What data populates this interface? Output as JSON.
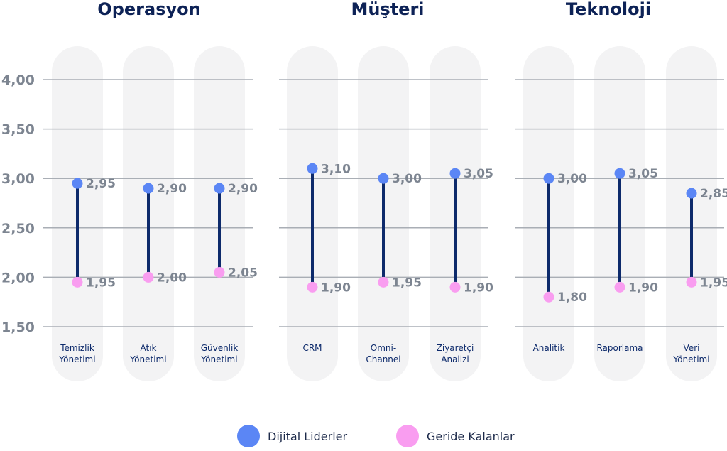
{
  "chart_data": {
    "type": "dumbbell",
    "ylim": [
      1.5,
      4.0
    ],
    "yticks": [
      "1,50",
      "2,00",
      "2,50",
      "3,00",
      "3,50",
      "4,00"
    ],
    "ytick_values": [
      1.5,
      2.0,
      2.5,
      3.0,
      3.5,
      4.0
    ],
    "grid": true,
    "legend_position": "bottom-center",
    "series": [
      {
        "name": "Dijital Liderler",
        "color": "#5b86f5"
      },
      {
        "name": "Geride Kalanlar",
        "color": "#f99df0"
      }
    ],
    "groups": [
      {
        "title": "Operasyon",
        "categories": [
          {
            "label": [
              "Temizlik",
              "Yönetimi"
            ],
            "leader": 2.95,
            "leader_label": "2,95",
            "lagger": 1.95,
            "lagger_label": "1,95"
          },
          {
            "label": [
              "Atık",
              "Yönetimi"
            ],
            "leader": 2.9,
            "leader_label": "2,90",
            "lagger": 2.0,
            "lagger_label": "2,00"
          },
          {
            "label": [
              "Güvenlik",
              "Yönetimi"
            ],
            "leader": 2.9,
            "leader_label": "2,90",
            "lagger": 2.05,
            "lagger_label": "2,05"
          }
        ]
      },
      {
        "title": "Müşteri",
        "categories": [
          {
            "label": [
              "CRM"
            ],
            "leader": 3.1,
            "leader_label": "3,10",
            "lagger": 1.9,
            "lagger_label": "1,90"
          },
          {
            "label": [
              "Omni-",
              "Channel"
            ],
            "leader": 3.0,
            "leader_label": "3,00",
            "lagger": 1.95,
            "lagger_label": "1,95"
          },
          {
            "label": [
              "Ziyaretçi",
              "Analizi"
            ],
            "leader": 3.05,
            "leader_label": "3,05",
            "lagger": 1.9,
            "lagger_label": "1,90"
          }
        ]
      },
      {
        "title": "Teknoloji",
        "categories": [
          {
            "label": [
              "Analitik"
            ],
            "leader": 3.0,
            "leader_label": "3,00",
            "lagger": 1.8,
            "lagger_label": "1,80"
          },
          {
            "label": [
              "Raporlama"
            ],
            "leader": 3.05,
            "leader_label": "3,05",
            "lagger": 1.9,
            "lagger_label": "1,90"
          },
          {
            "label": [
              "Veri",
              "Yönetimi"
            ],
            "leader": 2.85,
            "leader_label": "2,85",
            "lagger": 1.95,
            "lagger_label": "1,95"
          }
        ]
      }
    ]
  },
  "colors": {
    "line": "#0d2a6b",
    "grid": "#a9aeb5",
    "column_bg": "#f3f3f4"
  }
}
